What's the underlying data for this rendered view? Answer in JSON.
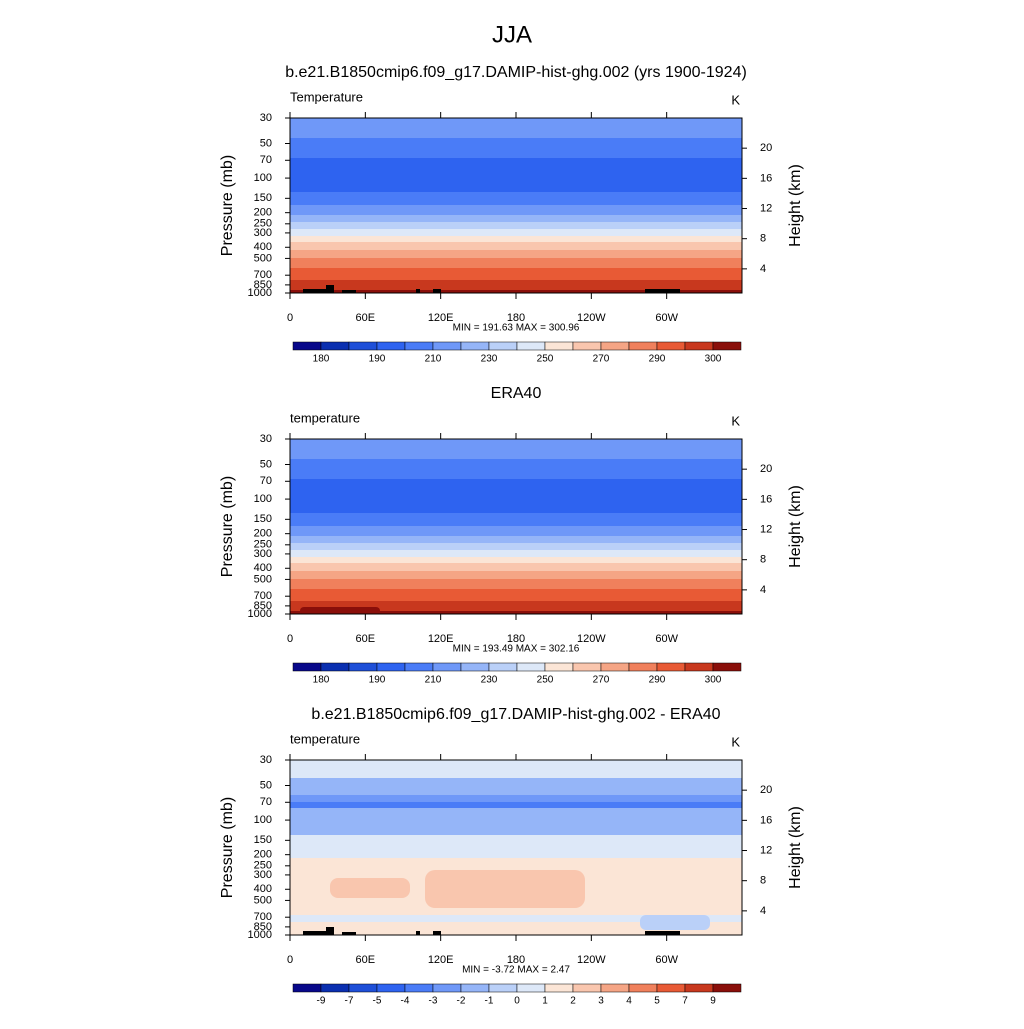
{
  "title": "JJA",
  "chart_data": [
    {
      "type": "contour",
      "title": "b.e21.B1850cmip6.f09_g17.DAMIP-hist-ghg.002 (yrs 1900-1924)",
      "left_string": "Temperature",
      "right_string": "K",
      "stats": "MIN = 191.63  MAX = 300.96",
      "ylabel": "Pressure (mb)",
      "y2label": "Height (km)",
      "log_y": true,
      "ylim": [
        1000,
        30
      ],
      "yticks": [
        30,
        50,
        70,
        100,
        150,
        200,
        250,
        300,
        400,
        500,
        700,
        850,
        1000
      ],
      "y2lim": [
        0.8,
        24
      ],
      "y2ticks": [
        4,
        8,
        12,
        16,
        20
      ],
      "xlim": [
        0,
        360
      ],
      "xticks": [
        0,
        {
          "value": 60,
          "label": "60E"
        },
        {
          "value": 120,
          "label": "120E"
        },
        180,
        {
          "value": 240,
          "label": "120W"
        },
        {
          "value": 300,
          "label": "60W"
        }
      ],
      "colorbar": {
        "colors": [
          "#08088a",
          "#0a2fb0",
          "#1e4fd8",
          "#2e63f0",
          "#4a7cf7",
          "#6f98f8",
          "#95b5f8",
          "#bad0f8",
          "#dde8f8",
          "#fbe5d6",
          "#f9c6ae",
          "#f5a585",
          "#f0805c",
          "#e85a35",
          "#c8381e",
          "#8a0f0a"
        ],
        "levels": [
          180,
          null,
          190,
          null,
          210,
          null,
          230,
          null,
          250,
          null,
          270,
          null,
          290,
          null,
          300
        ]
      }
    },
    {
      "type": "contour",
      "title": "ERA40",
      "left_string": "temperature",
      "right_string": "K",
      "stats": "MIN = 193.49  MAX = 302.16",
      "ylabel": "Pressure (mb)",
      "y2label": "Height (km)",
      "log_y": true,
      "ylim": [
        1000,
        30
      ],
      "yticks": [
        30,
        50,
        70,
        100,
        150,
        200,
        250,
        300,
        400,
        500,
        700,
        850,
        1000
      ],
      "y2lim": [
        0.8,
        24
      ],
      "y2ticks": [
        4,
        8,
        12,
        16,
        20
      ],
      "xlim": [
        0,
        360
      ],
      "xticks": [
        0,
        {
          "value": 60,
          "label": "60E"
        },
        {
          "value": 120,
          "label": "120E"
        },
        180,
        {
          "value": 240,
          "label": "120W"
        },
        {
          "value": 300,
          "label": "60W"
        }
      ],
      "colorbar": {
        "colors": [
          "#08088a",
          "#0a2fb0",
          "#1e4fd8",
          "#2e63f0",
          "#4a7cf7",
          "#6f98f8",
          "#95b5f8",
          "#bad0f8",
          "#dde8f8",
          "#fbe5d6",
          "#f9c6ae",
          "#f5a585",
          "#f0805c",
          "#e85a35",
          "#c8381e",
          "#8a0f0a"
        ],
        "levels": [
          180,
          null,
          190,
          null,
          210,
          null,
          230,
          null,
          250,
          null,
          270,
          null,
          290,
          null,
          300
        ]
      }
    },
    {
      "type": "contour",
      "title": "b.e21.B1850cmip6.f09_g17.DAMIP-hist-ghg.002 - ERA40",
      "left_string": "temperature",
      "right_string": "K",
      "stats": "MIN =  -3.72  MAX =   2.47",
      "ylabel": "Pressure (mb)",
      "y2label": "Height (km)",
      "log_y": true,
      "ylim": [
        1000,
        30
      ],
      "yticks": [
        30,
        50,
        70,
        100,
        150,
        200,
        250,
        300,
        400,
        500,
        700,
        850,
        1000
      ],
      "y2lim": [
        0.8,
        24
      ],
      "y2ticks": [
        4,
        8,
        12,
        16,
        20
      ],
      "xlim": [
        0,
        360
      ],
      "xticks": [
        0,
        {
          "value": 60,
          "label": "60E"
        },
        {
          "value": 120,
          "label": "120E"
        },
        180,
        {
          "value": 240,
          "label": "120W"
        },
        {
          "value": 300,
          "label": "60W"
        }
      ],
      "colorbar": {
        "colors": [
          "#08088a",
          "#0a2fb0",
          "#1e4fd8",
          "#2e63f0",
          "#4a7cf7",
          "#6f98f8",
          "#95b5f8",
          "#bad0f8",
          "#dde8f8",
          "#fbe5d6",
          "#f9c6ae",
          "#f5a585",
          "#f0805c",
          "#e85a35",
          "#c8381e",
          "#8a0f0a"
        ],
        "levels": [
          -9,
          -7,
          -5,
          -4,
          -3,
          -2,
          -1,
          0,
          1,
          2,
          3,
          4,
          5,
          7,
          9
        ]
      }
    }
  ]
}
